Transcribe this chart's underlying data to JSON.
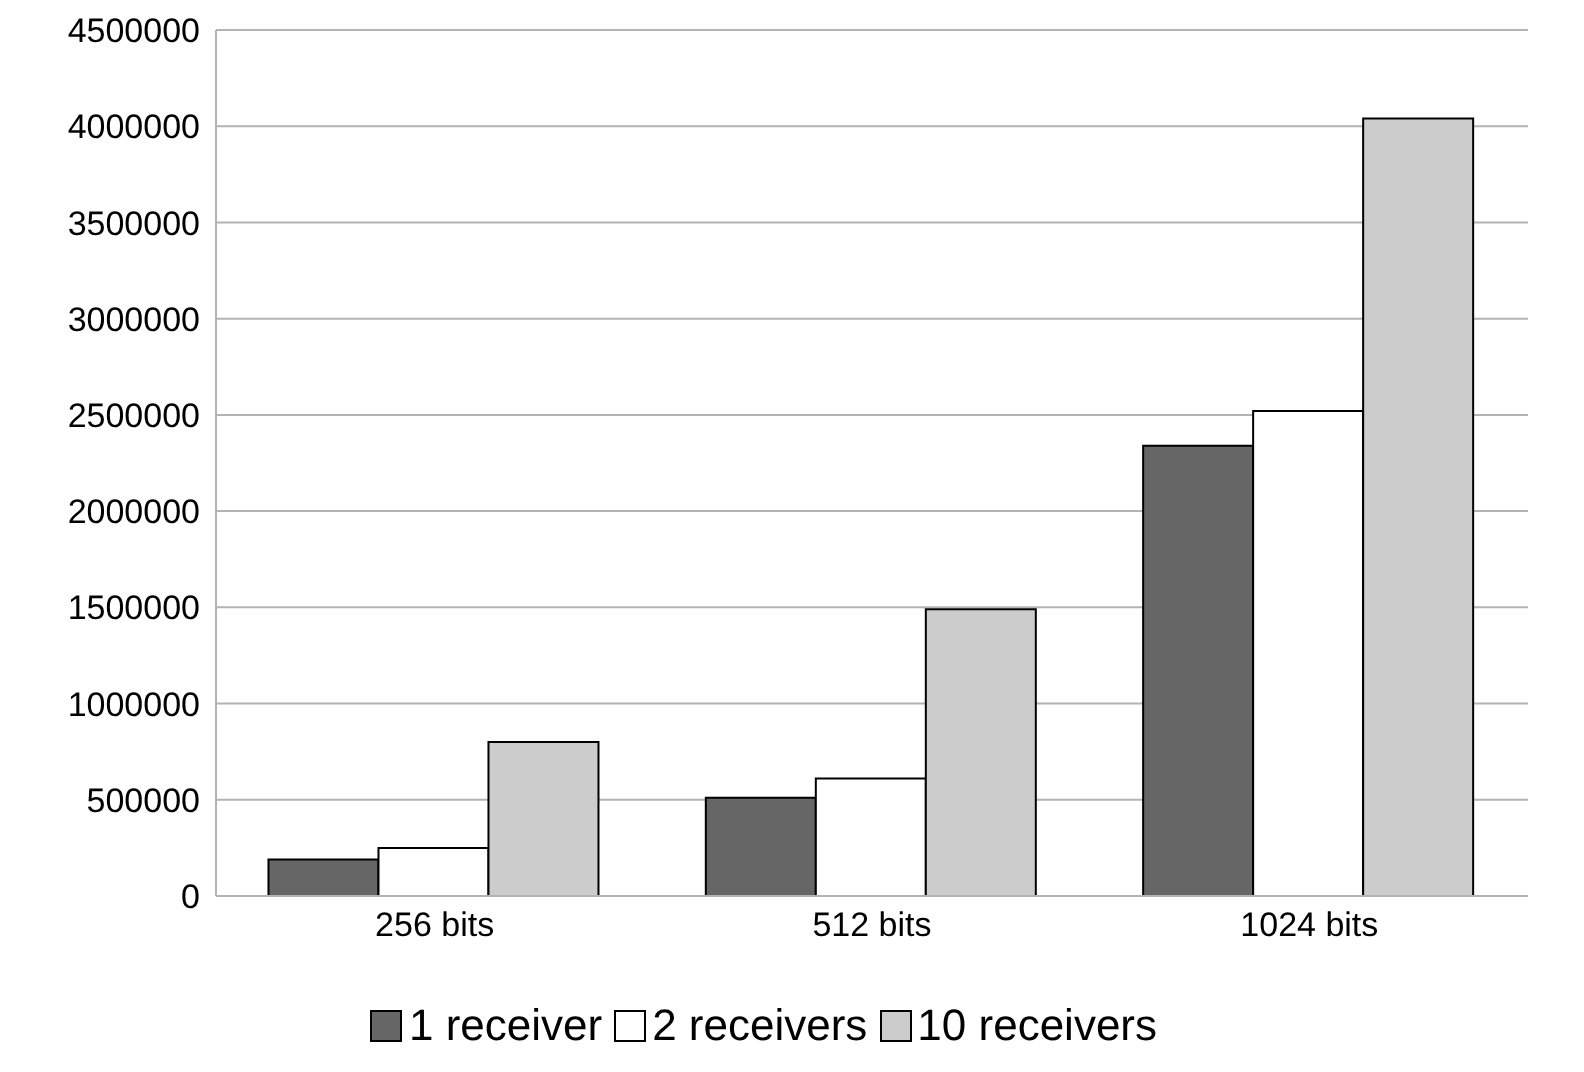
{
  "chart_data": {
    "type": "bar",
    "categories": [
      "256 bits",
      "512 bits",
      "1024 bits"
    ],
    "series": [
      {
        "name": "1 receiver",
        "color": "#666666",
        "values": [
          190000,
          510000,
          2340000
        ]
      },
      {
        "name": "2 receivers",
        "color": "#ffffff",
        "values": [
          250000,
          610000,
          2520000
        ]
      },
      {
        "name": "10 receivers",
        "color": "#cccccc",
        "values": [
          800000,
          1490000,
          4040000
        ]
      }
    ],
    "ylim": [
      0,
      4500000
    ],
    "yticks": [
      0,
      500000,
      1000000,
      1500000,
      2000000,
      2500000,
      3000000,
      3500000,
      4000000,
      4500000
    ],
    "grid": "y",
    "legend": "bottom"
  }
}
